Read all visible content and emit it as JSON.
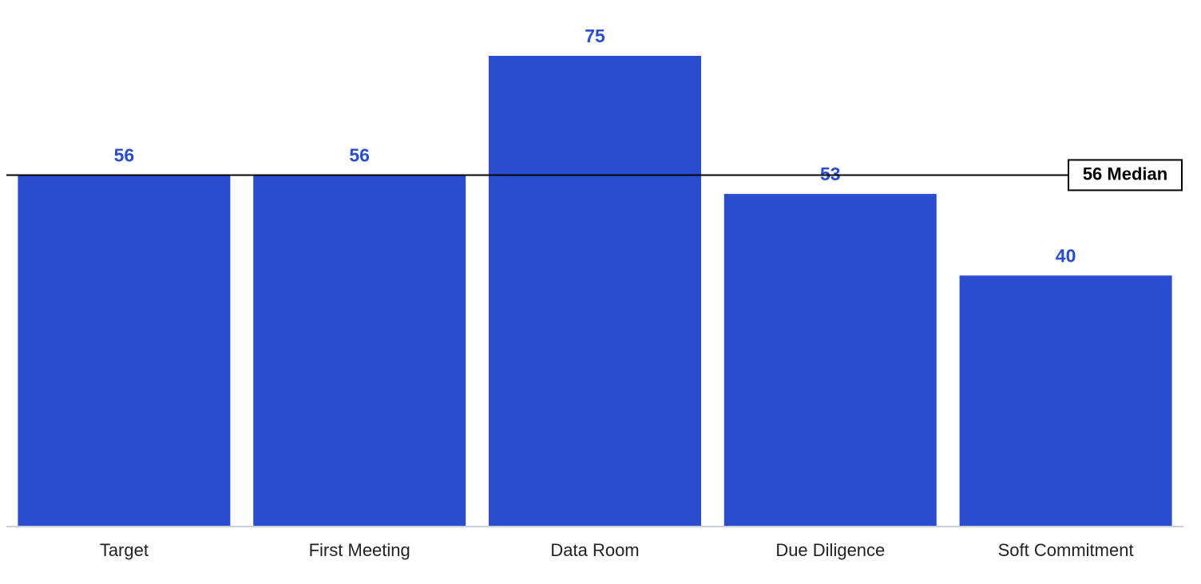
{
  "chart_data": {
    "type": "bar",
    "categories": [
      "Target",
      "First Meeting",
      "Data Room",
      "Due Diligence",
      "Soft Commitment"
    ],
    "values": [
      56,
      56,
      75,
      53,
      40
    ],
    "color": "#2a4dd0",
    "ylim": [
      0,
      75
    ],
    "median": {
      "value": 56,
      "label": "56 Median"
    }
  }
}
